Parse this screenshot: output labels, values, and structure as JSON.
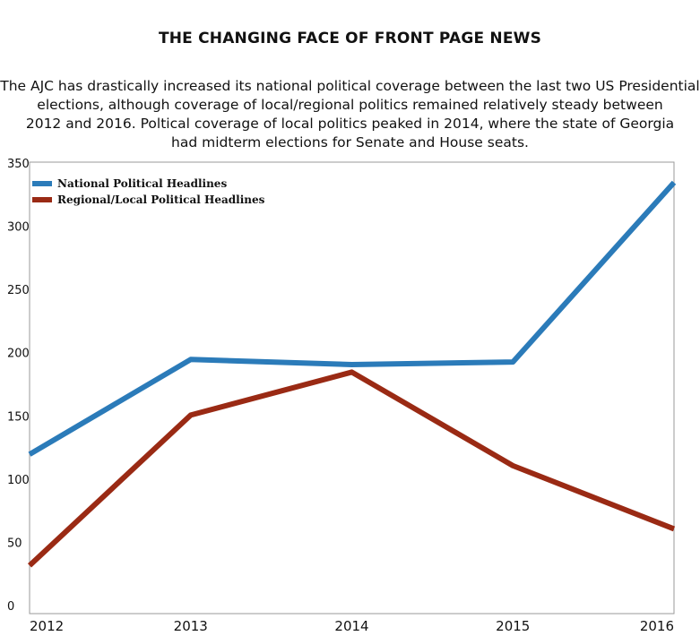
{
  "colors": {
    "national": "#2b7bb9",
    "regional": "#9a2a14"
  },
  "chart_data": {
    "type": "line",
    "title": "THE CHANGING FACE OF FRONT PAGE NEWS",
    "subtitle": [
      "The AJC has drastically increased its national political coverage between the last two US Presidential",
      "elections, although coverage of local/regional politics remained relatively steady between",
      "2012 and 2016. Poltical coverage of local politics peaked in 2014, where the state of Georgia",
      "had midterm elections for Senate and House seats."
    ],
    "x": [
      "2012",
      "2013",
      "2014",
      "2015",
      "2016"
    ],
    "yticks": [
      "0",
      "50",
      "100",
      "150",
      "200",
      "250",
      "300",
      "350"
    ],
    "ylim": [
      0,
      350
    ],
    "series": [
      {
        "name": "National Political Headlines",
        "color": "#2b7bb9",
        "values": [
          126,
          201,
          197,
          199,
          341
        ]
      },
      {
        "name": "Regional/Local Political Headlines",
        "color": "#9a2a14",
        "values": [
          38,
          157,
          191,
          117,
          67
        ]
      }
    ],
    "legend": "top-left",
    "grid": false,
    "xlabel": "",
    "ylabel": ""
  }
}
